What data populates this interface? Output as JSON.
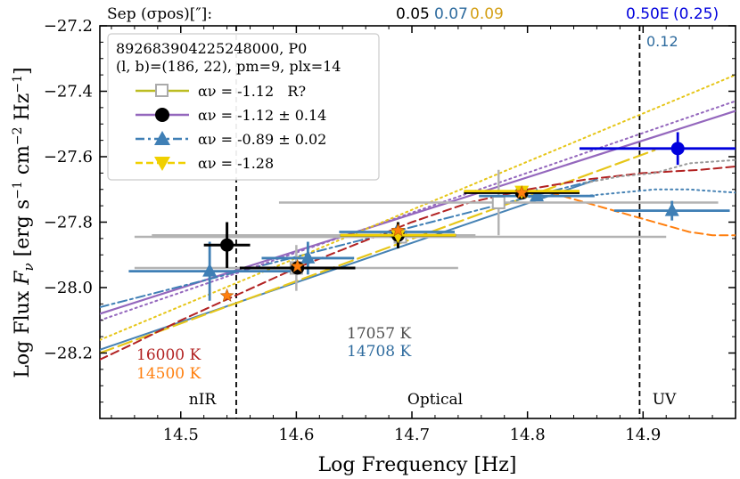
{
  "chart_data": {
    "type": "scatter",
    "xlabel": "Log Frequency [Hz]",
    "ylabel": "Log Flux Fν [erg s⁻¹ cm⁻² Hz⁻¹]",
    "xlim": [
      14.43,
      14.98
    ],
    "ylim": [
      -28.4,
      -27.2
    ],
    "xticks": [
      14.5,
      14.6,
      14.7,
      14.8,
      14.9
    ],
    "xtick_labels": [
      "14.5",
      "14.6",
      "14.7",
      "14.8",
      "14.9"
    ],
    "yticks": [
      -27.2,
      -27.4,
      -27.6,
      -27.8,
      -28.0,
      -28.2
    ],
    "ytick_labels": [
      "−27.2",
      "−27.4",
      "−27.6",
      "−27.8",
      "−28.0",
      "−28.2"
    ],
    "top_header": {
      "label": "Sep (σpos)[″]:",
      "values": [
        {
          "text": "0.05",
          "color": "#000000"
        },
        {
          "text": "0.07",
          "color": "#2e6b9e"
        },
        {
          "text": "0.09",
          "color": "#d4a017"
        },
        {
          "text": "0.50E",
          "color": "#0000dd"
        },
        {
          "text": "(0.25)",
          "color": "#0000dd"
        }
      ]
    },
    "uv_sep_label": {
      "text": "0.12",
      "color": "#2e6b9e"
    },
    "legend": {
      "title_line1": "892683904225248000, P0",
      "title_line2": "(l, b)=(186, 22), pm=9, plx=14",
      "placement": "upper-left",
      "entries": [
        {
          "label": "αν = -1.12   R?",
          "color": "#bcbd22",
          "marker": "open-square",
          "line": "solid"
        },
        {
          "label": "αν = -1.12 ± 0.14",
          "color": "#9467bd",
          "marker": "circle",
          "line": "solid"
        },
        {
          "label": "αν = -0.89 ± 0.02",
          "color": "#3f7fb5",
          "marker": "triangle-up",
          "line": "dashdot"
        },
        {
          "label": "αν = -1.28",
          "color": "#f0d000",
          "marker": "triangle-down",
          "line": "dashed"
        }
      ]
    },
    "band_dividers": [
      14.548,
      14.897
    ],
    "band_labels": [
      {
        "text": "nIR",
        "x": 14.51
      },
      {
        "text": "Optical",
        "x": 14.71
      },
      {
        "text": "UV",
        "x": 14.94
      }
    ],
    "temperature_labels": [
      {
        "text": "17057 K",
        "color": "#4d4d4d",
        "x": 14.715,
        "y": -28.12
      },
      {
        "text": "14708 K",
        "color": "#2e6b9e",
        "x": 14.715,
        "y": -28.18
      },
      {
        "text": "16000 K",
        "color": "#b22222",
        "x": 14.495,
        "y": -28.19
      },
      {
        "text": "14500 K",
        "color": "#ff7f0e",
        "x": 14.495,
        "y": -28.25
      }
    ],
    "fit_lines": [
      {
        "name": "purple-fit",
        "color": "#9467bd",
        "style": "solid",
        "width": 2.2,
        "x": [
          14.43,
          14.98
        ],
        "y": [
          -28.08,
          -27.46
        ]
      },
      {
        "name": "steelblue-fit",
        "color": "#4682b4",
        "style": "solid",
        "width": 2,
        "x": [
          14.43,
          14.86
        ],
        "y": [
          -28.19,
          -27.67
        ]
      },
      {
        "name": "gold-fit",
        "color": "#e6c619",
        "style": "longdash",
        "width": 2.2,
        "x": [
          14.43,
          14.91
        ],
        "y": [
          -28.2,
          -27.58
        ]
      },
      {
        "name": "blue-dashdot-fit",
        "color": "#3f7fb5",
        "style": "dashdot",
        "width": 2,
        "x": [
          14.43,
          14.86
        ],
        "y": [
          -28.06,
          -27.67
        ]
      },
      {
        "name": "purple-dotted-extension",
        "color": "#9467bd",
        "style": "dotted",
        "width": 2,
        "x": [
          14.43,
          14.98
        ],
        "y": [
          -28.1,
          -27.43
        ]
      },
      {
        "name": "gold-dotted-extension",
        "color": "#e6c619",
        "style": "dotted",
        "width": 2,
        "x": [
          14.43,
          14.98
        ],
        "y": [
          -28.16,
          -27.35
        ]
      },
      {
        "name": "red-dashed-model",
        "color": "#b22222",
        "style": "dashed",
        "width": 2,
        "x": [
          14.43,
          14.46,
          14.5,
          14.55,
          14.6,
          14.65,
          14.7,
          14.75,
          14.8,
          14.85,
          14.9,
          14.95,
          14.98
        ],
        "y": [
          -28.22,
          -28.17,
          -28.1,
          -28.02,
          -27.94,
          -27.87,
          -27.8,
          -27.74,
          -27.7,
          -27.67,
          -27.65,
          -27.64,
          -27.63
        ]
      },
      {
        "name": "gray-dotted-model",
        "color": "#999999",
        "style": "dotted",
        "width": 2,
        "x": [
          14.85,
          14.88,
          14.91,
          14.94,
          14.98
        ],
        "y": [
          -27.68,
          -27.66,
          -27.65,
          -27.62,
          -27.61
        ]
      },
      {
        "name": "steelblue-dotted-model",
        "color": "#4682b4",
        "style": "dotted",
        "width": 2,
        "x": [
          14.85,
          14.88,
          14.91,
          14.94,
          14.98
        ],
        "y": [
          -27.72,
          -27.71,
          -27.7,
          -27.7,
          -27.71
        ]
      },
      {
        "name": "orange-dashed-model",
        "color": "#ff7f0e",
        "style": "dashed",
        "width": 2,
        "x": [
          14.82,
          14.85,
          14.88,
          14.91,
          14.94,
          14.96,
          14.98
        ],
        "y": [
          -27.71,
          -27.74,
          -27.77,
          -27.8,
          -27.83,
          -27.84,
          -27.84
        ]
      }
    ],
    "gray_crosses": [
      {
        "x": 14.6,
        "y": -27.94,
        "xerr": 0.14,
        "yerr": 0.07,
        "marker": "open-square"
      },
      {
        "x": 14.69,
        "y": -27.845,
        "xerr": 0.23,
        "yerr": 0.0,
        "marker": "open-square"
      },
      {
        "x": 14.775,
        "y": -27.74,
        "xerr": 0.19,
        "yerr": 0.1,
        "marker": "open-square"
      },
      {
        "x": 14.615,
        "y": -27.84,
        "xerr": 0.14,
        "yerr": 0.0,
        "marker": "none"
      },
      {
        "x": 14.615,
        "y": -27.845,
        "xerr": 0.14,
        "yerr": 0.0,
        "marker": "none"
      }
    ],
    "series": [
      {
        "name": "black-circles",
        "color": "#000000",
        "marker": "circle",
        "points": [
          {
            "x": 14.54,
            "y": -27.87,
            "xerr": 0.02,
            "yerr": 0.07
          },
          {
            "x": 14.601,
            "y": -27.94,
            "xerr": 0.05,
            "yerr": 0.0
          },
          {
            "x": 14.688,
            "y": -27.84,
            "xerr": 0.05,
            "yerr": 0.04
          },
          {
            "x": 14.795,
            "y": -27.71,
            "xerr": 0.05,
            "yerr": 0.02
          }
        ]
      },
      {
        "name": "steelblue-triangles",
        "color": "#3f7fb5",
        "marker": "triangle-up",
        "points": [
          {
            "x": 14.525,
            "y": -27.95,
            "xerr": 0.07,
            "yerr": 0.09
          },
          {
            "x": 14.61,
            "y": -27.91,
            "xerr": 0.04,
            "yerr": 0.05
          },
          {
            "x": 14.687,
            "y": -27.83,
            "xerr": 0.05,
            "yerr": 0.0
          },
          {
            "x": 14.808,
            "y": -27.72,
            "xerr": 0.05,
            "yerr": 0.0
          },
          {
            "x": 14.925,
            "y": -27.765,
            "xerr": 0.05,
            "yerr": 0.03
          }
        ]
      },
      {
        "name": "gold-triangles",
        "color": "#f0d000",
        "marker": "triangle-down",
        "points": [
          {
            "x": 14.688,
            "y": -27.84,
            "xerr": 0.05,
            "yerr": 0.0
          },
          {
            "x": 14.795,
            "y": -27.705,
            "xerr": 0.05,
            "yerr": 0.0
          }
        ]
      },
      {
        "name": "blue-uv-point",
        "color": "#0000dd",
        "marker": "circle",
        "points": [
          {
            "x": 14.93,
            "y": -27.575,
            "xerr": 0.085,
            "yerr": 0.05
          }
        ]
      },
      {
        "name": "orange-stars",
        "color": "#ff7f0e",
        "marker": "star",
        "points": [
          {
            "x": 14.54,
            "y": -28.025
          },
          {
            "x": 14.601,
            "y": -27.935
          },
          {
            "x": 14.688,
            "y": -27.825
          },
          {
            "x": 14.795,
            "y": -27.71
          }
        ]
      }
    ]
  }
}
